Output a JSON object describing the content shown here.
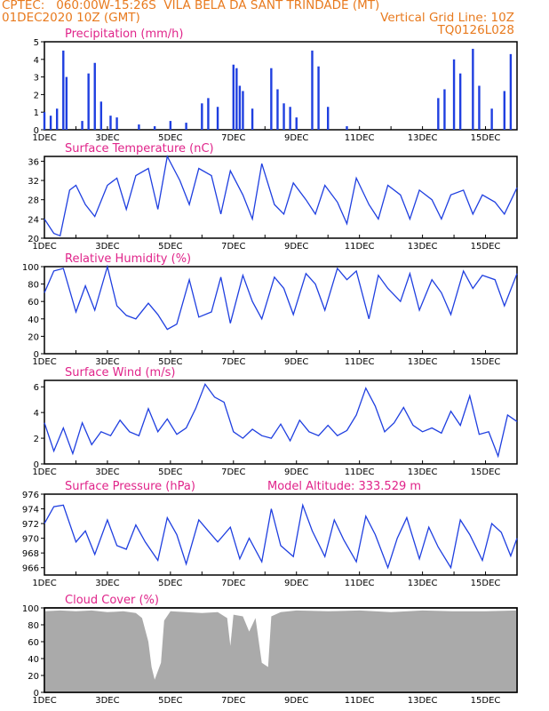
{
  "header": {
    "line1_left": "CPTEC:   060:00W-15:26S  VILA BELA DA SANT TRINDADE (MT)",
    "line2_left": "01DEC2020 10Z (GMT)",
    "line2_right": "Vertical Grid Line: 10Z",
    "line3_right": "TQ0126L028"
  },
  "colors": {
    "accent_orange": "#e87a1e",
    "title_magenta": "#e0248a",
    "series_blue": "#1f3fe0",
    "cloud_gray": "#aaaaaa"
  },
  "x_labels": [
    "1DEC",
    "3DEC",
    "5DEC",
    "7DEC",
    "9DEC",
    "11DEC",
    "13DEC",
    "15DEC"
  ],
  "chart_data": [
    {
      "type": "bar",
      "title": "Precipitation (mm/h)",
      "ylim": [
        0,
        5
      ],
      "yticks": [
        "0",
        "1",
        "2",
        "3",
        "4",
        "5"
      ],
      "x_days": [
        1.0,
        1.2,
        1.4,
        1.6,
        1.7,
        2.2,
        2.4,
        2.6,
        2.8,
        3.1,
        3.3,
        4.0,
        4.5,
        5.0,
        5.5,
        6.0,
        6.2,
        6.5,
        7.0,
        7.1,
        7.2,
        7.3,
        7.6,
        8.2,
        8.4,
        8.6,
        8.8,
        9.0,
        9.5,
        9.7,
        10.0,
        10.6,
        13.5,
        13.7,
        14.0,
        14.2,
        14.6,
        14.8,
        15.2,
        15.6,
        15.8
      ],
      "values": [
        1.0,
        0.8,
        1.2,
        4.5,
        3.0,
        0.5,
        3.2,
        3.8,
        1.6,
        0.8,
        0.7,
        0.3,
        0.2,
        0.5,
        0.4,
        1.5,
        1.8,
        1.3,
        3.7,
        3.5,
        2.5,
        2.2,
        1.2,
        3.5,
        2.3,
        1.5,
        1.3,
        0.7,
        4.5,
        3.6,
        1.3,
        0.2,
        1.8,
        2.3,
        4.0,
        3.2,
        4.6,
        2.5,
        1.2,
        2.2,
        4.3
      ]
    },
    {
      "type": "line",
      "title": "Surface Temperature (nC)",
      "ylim": [
        20,
        37
      ],
      "yticks": [
        "20",
        "24",
        "28",
        "32",
        "36"
      ],
      "x_days": [
        1.0,
        1.3,
        1.5,
        1.8,
        2.0,
        2.3,
        2.6,
        3.0,
        3.3,
        3.6,
        3.9,
        4.3,
        4.6,
        4.9,
        5.3,
        5.6,
        5.9,
        6.3,
        6.6,
        6.9,
        7.3,
        7.6,
        7.9,
        8.3,
        8.6,
        8.9,
        9.3,
        9.6,
        9.9,
        10.3,
        10.6,
        10.9,
        11.3,
        11.6,
        11.9,
        12.3,
        12.6,
        12.9,
        13.3,
        13.6,
        13.9,
        14.3,
        14.6,
        14.9,
        15.3,
        15.6,
        16.0
      ],
      "values": [
        24,
        21,
        20.5,
        30,
        31,
        27,
        24.5,
        31,
        32.5,
        26,
        33,
        34.5,
        26,
        37,
        32,
        27,
        34.5,
        33,
        25,
        34,
        29,
        24,
        35.5,
        27,
        25,
        31.5,
        28,
        25,
        31,
        27.5,
        23,
        32.5,
        27,
        24,
        31,
        29,
        24,
        30,
        28,
        24,
        29,
        30,
        25,
        29,
        27.5,
        25,
        30.5
      ]
    },
    {
      "type": "line",
      "title": "Relative Humidity (%)",
      "ylim": [
        0,
        100
      ],
      "yticks": [
        "0",
        "20",
        "40",
        "60",
        "80",
        "100"
      ],
      "x_days": [
        1.0,
        1.3,
        1.6,
        2.0,
        2.3,
        2.6,
        3.0,
        3.3,
        3.6,
        3.9,
        4.3,
        4.6,
        4.9,
        5.2,
        5.6,
        5.9,
        6.3,
        6.6,
        6.9,
        7.3,
        7.6,
        7.9,
        8.3,
        8.6,
        8.9,
        9.3,
        9.6,
        9.9,
        10.3,
        10.6,
        10.9,
        11.3,
        11.6,
        11.9,
        12.3,
        12.6,
        12.9,
        13.3,
        13.6,
        13.9,
        14.3,
        14.6,
        14.9,
        15.3,
        15.6,
        16.0
      ],
      "values": [
        70,
        95,
        98,
        48,
        78,
        50,
        100,
        55,
        44,
        40,
        58,
        45,
        28,
        34,
        85,
        42,
        48,
        88,
        35,
        90,
        60,
        40,
        88,
        75,
        45,
        92,
        80,
        50,
        98,
        85,
        95,
        40,
        90,
        75,
        60,
        92,
        50,
        85,
        70,
        45,
        95,
        75,
        90,
        85,
        55,
        92
      ]
    },
    {
      "type": "line",
      "title": "Surface Wind (m/s)",
      "ylim": [
        0,
        6.5
      ],
      "yticks": [
        "0",
        "2",
        "4",
        "6"
      ],
      "x_days": [
        1.0,
        1.3,
        1.6,
        1.9,
        2.2,
        2.5,
        2.8,
        3.1,
        3.4,
        3.7,
        4.0,
        4.3,
        4.6,
        4.9,
        5.2,
        5.5,
        5.8,
        6.1,
        6.4,
        6.7,
        7.0,
        7.3,
        7.6,
        7.9,
        8.2,
        8.5,
        8.8,
        9.1,
        9.4,
        9.7,
        10.0,
        10.3,
        10.6,
        10.9,
        11.2,
        11.5,
        11.8,
        12.1,
        12.4,
        12.7,
        13.0,
        13.3,
        13.6,
        13.9,
        14.2,
        14.5,
        14.8,
        15.1,
        15.4,
        15.7,
        16.0
      ],
      "values": [
        3.2,
        1.0,
        2.8,
        0.8,
        3.2,
        1.5,
        2.5,
        2.2,
        3.4,
        2.5,
        2.2,
        4.3,
        2.5,
        3.5,
        2.3,
        2.8,
        4.3,
        6.2,
        5.2,
        4.8,
        2.5,
        2.0,
        2.7,
        2.2,
        2.0,
        3.1,
        1.8,
        3.4,
        2.5,
        2.2,
        3.0,
        2.2,
        2.6,
        3.8,
        5.9,
        4.5,
        2.5,
        3.2,
        4.4,
        3.0,
        2.5,
        2.8,
        2.4,
        4.1,
        3.0,
        5.3,
        2.3,
        2.5,
        0.6,
        3.8,
        3.3
      ]
    },
    {
      "type": "line",
      "title": "Surface Pressure (hPa)",
      "annotation": "Model Altitude: 333.529  m",
      "ylim": [
        965,
        976
      ],
      "yticks": [
        "966",
        "968",
        "970",
        "972",
        "974",
        "976"
      ],
      "x_days": [
        1.0,
        1.3,
        1.6,
        2.0,
        2.3,
        2.6,
        3.0,
        3.3,
        3.6,
        3.9,
        4.2,
        4.6,
        4.9,
        5.2,
        5.5,
        5.9,
        6.2,
        6.5,
        6.9,
        7.2,
        7.5,
        7.9,
        8.2,
        8.5,
        8.9,
        9.2,
        9.5,
        9.9,
        10.2,
        10.5,
        10.9,
        11.2,
        11.5,
        11.9,
        12.2,
        12.5,
        12.9,
        13.2,
        13.5,
        13.9,
        14.2,
        14.5,
        14.9,
        15.2,
        15.5,
        15.8,
        16.0
      ],
      "values": [
        972,
        974.3,
        974.5,
        969.5,
        971,
        967.8,
        972.5,
        969,
        968.5,
        971.8,
        969.5,
        967,
        972.8,
        970.5,
        966.5,
        972.5,
        971,
        969.5,
        971.5,
        967.2,
        970,
        966.8,
        974,
        969,
        967.5,
        974.5,
        971,
        967.5,
        972.5,
        969.8,
        966.8,
        973,
        970.5,
        966,
        970,
        972.8,
        967.2,
        971.5,
        968.8,
        966,
        972.5,
        970.5,
        967,
        972,
        970.8,
        967.6,
        970
      ]
    },
    {
      "type": "area",
      "title": "Cloud Cover (%)",
      "ylim": [
        0,
        100
      ],
      "yticks": [
        "0",
        "20",
        "40",
        "60",
        "80",
        "100"
      ],
      "x_days": [
        1.0,
        1.5,
        2.0,
        2.5,
        3.0,
        3.5,
        3.9,
        4.1,
        4.3,
        4.4,
        4.5,
        4.7,
        4.8,
        5.0,
        5.5,
        6.0,
        6.5,
        6.8,
        6.9,
        7.0,
        7.3,
        7.5,
        7.7,
        7.9,
        8.1,
        8.2,
        8.5,
        9.0,
        10.0,
        11.0,
        12.0,
        13.0,
        14.0,
        15.0,
        16.0
      ],
      "values": [
        96,
        97,
        96,
        97,
        95,
        96,
        94,
        88,
        60,
        30,
        15,
        35,
        85,
        96,
        95,
        94,
        95,
        88,
        55,
        92,
        90,
        72,
        88,
        35,
        30,
        90,
        95,
        97,
        96,
        97,
        95,
        97,
        96,
        96,
        97
      ]
    }
  ]
}
